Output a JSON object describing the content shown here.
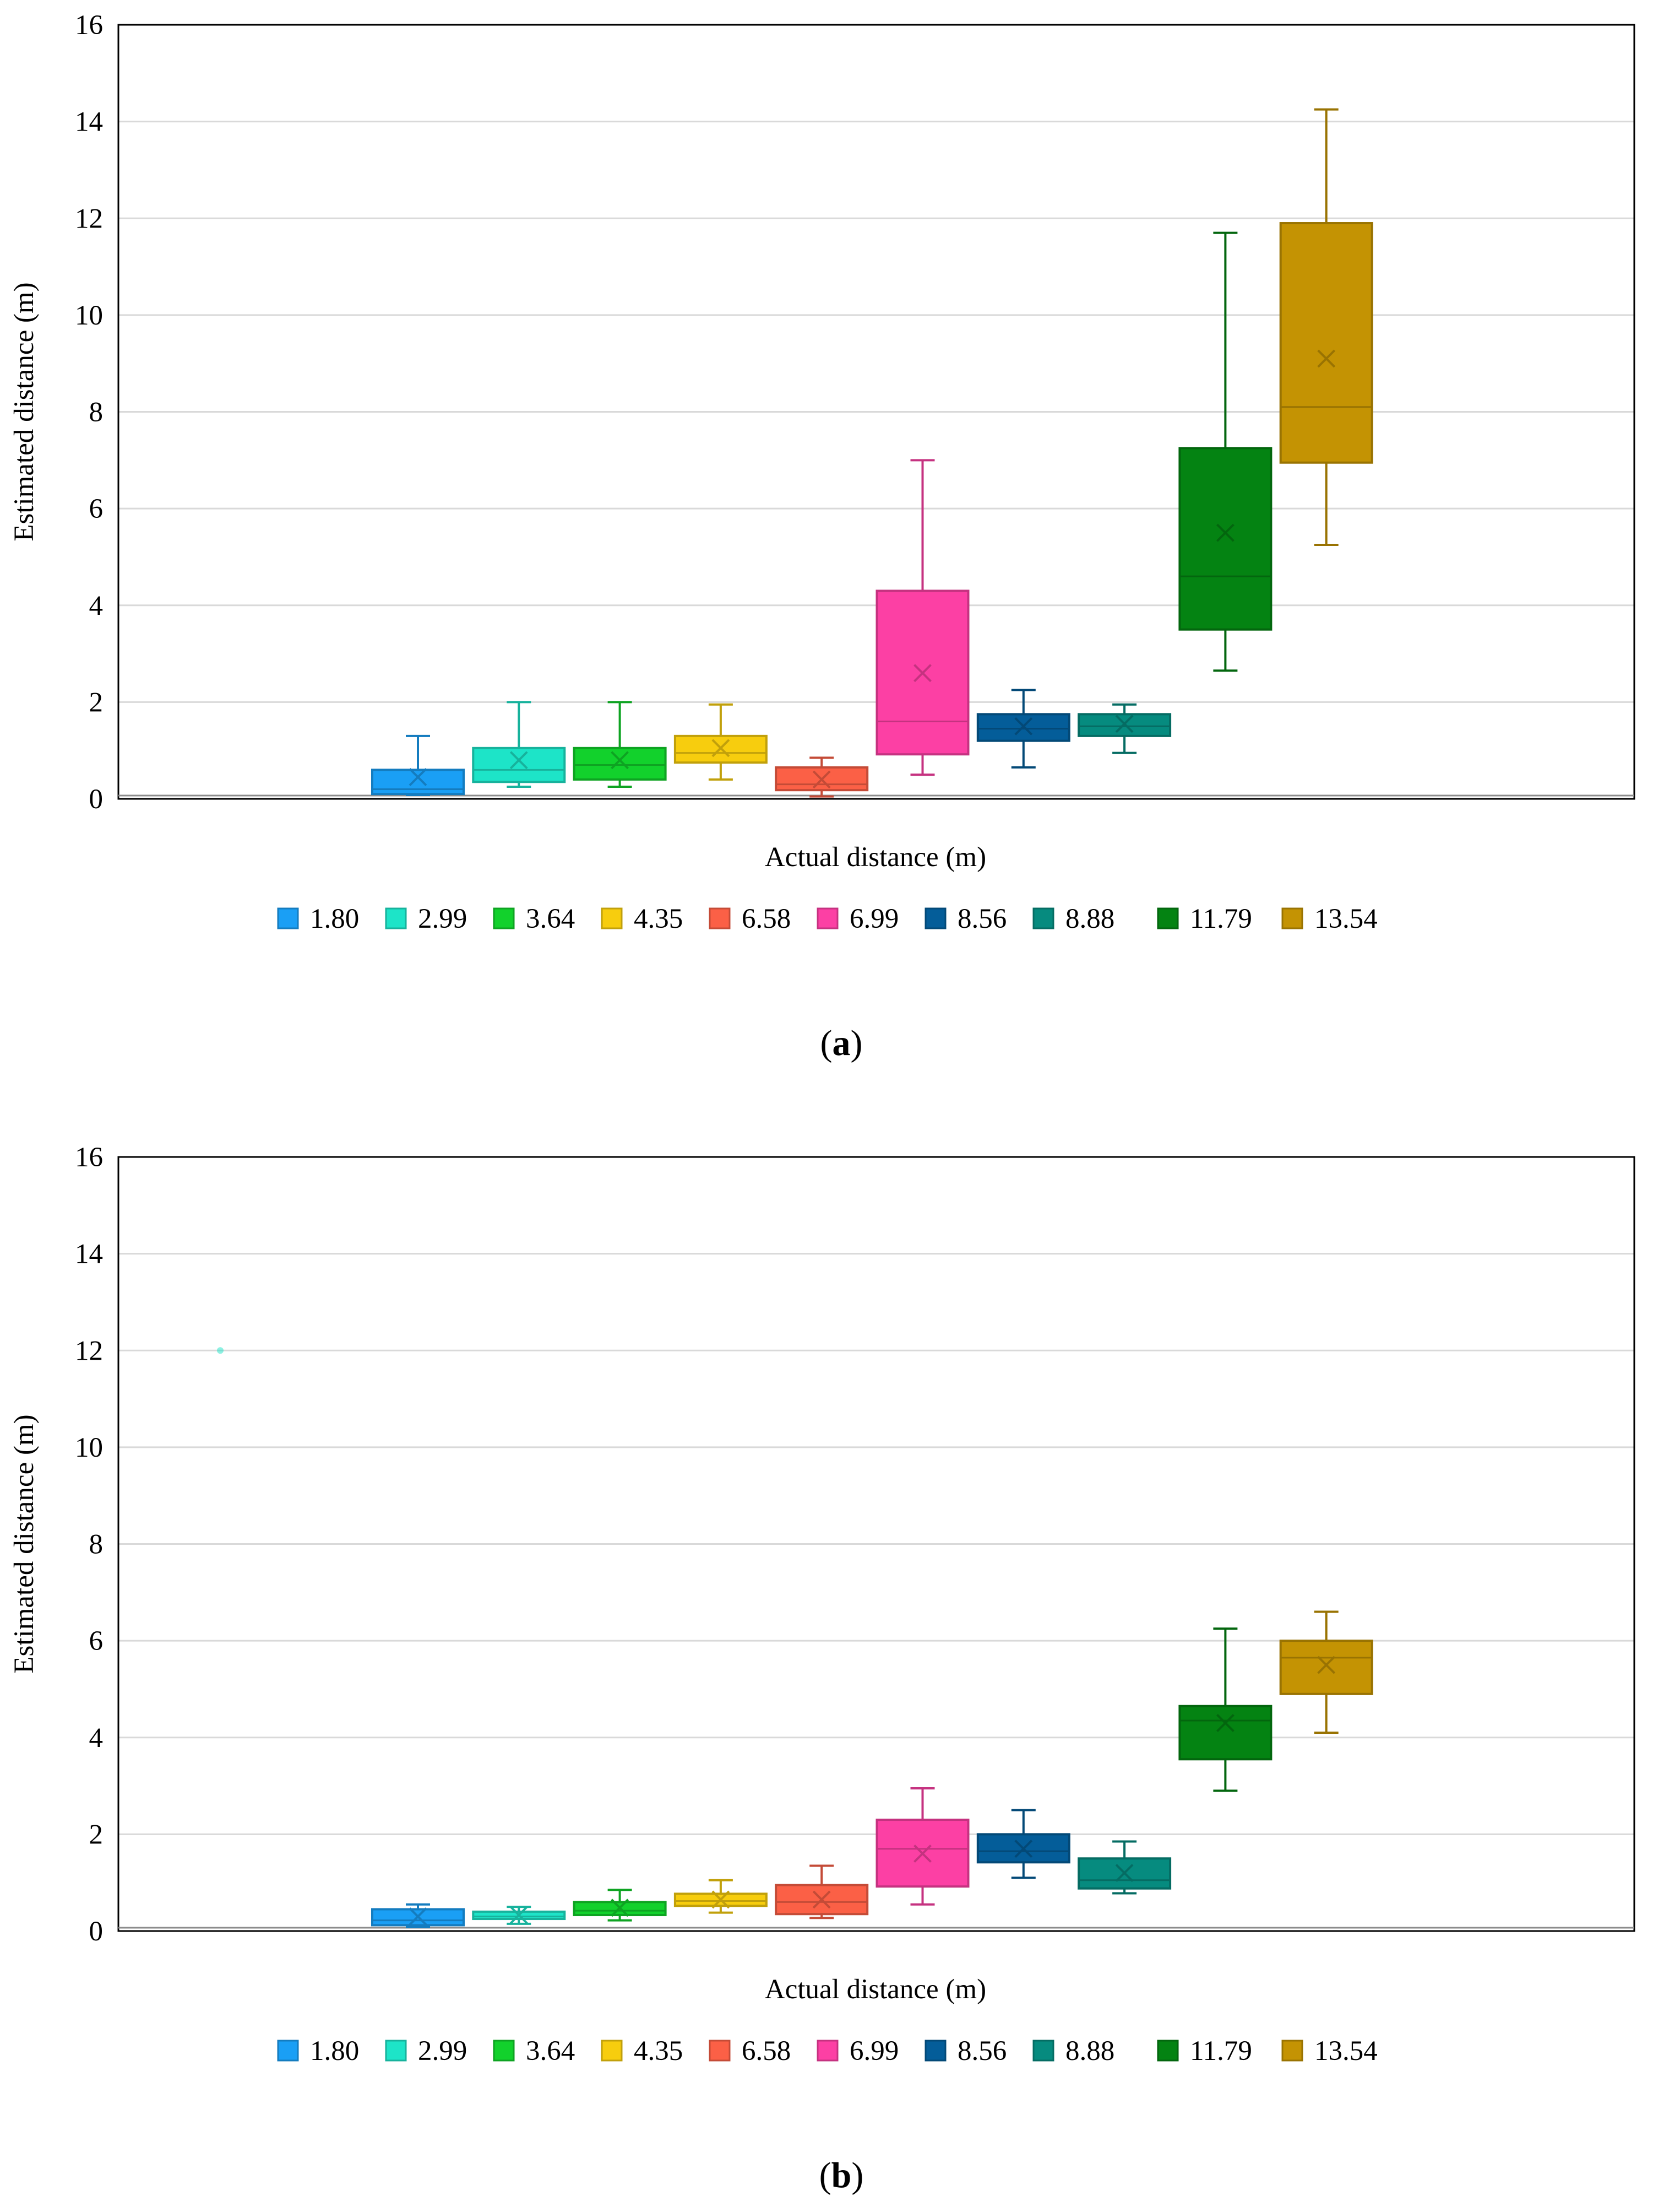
{
  "chart_data": [
    {
      "type": "box",
      "caption_letter": "a",
      "xlabel": "Actual distance (m)",
      "ylabel": "Estimated distance (m)",
      "ylim": [
        0,
        16
      ],
      "yticks": [
        "0",
        "2",
        "4",
        "6",
        "8",
        "10",
        "12",
        "14",
        "16"
      ],
      "grid": true,
      "legend_position": "bottom",
      "series": [
        {
          "name": "1.80",
          "color": "#1a9ff5",
          "min": 0.08,
          "q1": 0.1,
          "median": 0.2,
          "q3": 0.6,
          "max": 1.3,
          "mean": 0.45
        },
        {
          "name": "2.99",
          "color": "#1de4c8",
          "min": 0.25,
          "q1": 0.35,
          "median": 0.6,
          "q3": 1.05,
          "max": 2.0,
          "mean": 0.8
        },
        {
          "name": "3.64",
          "color": "#12d12c",
          "min": 0.25,
          "q1": 0.4,
          "median": 0.7,
          "q3": 1.05,
          "max": 2.0,
          "mean": 0.8
        },
        {
          "name": "4.35",
          "color": "#f7cd0e",
          "min": 0.4,
          "q1": 0.75,
          "median": 0.95,
          "q3": 1.3,
          "max": 1.95,
          "mean": 1.05
        },
        {
          "name": "6.58",
          "color": "#fb6046",
          "min": 0.05,
          "q1": 0.18,
          "median": 0.3,
          "q3": 0.65,
          "max": 0.85,
          "mean": 0.4
        },
        {
          "name": "6.99",
          "color": "#fc40a4",
          "min": 0.5,
          "q1": 0.92,
          "median": 1.6,
          "q3": 4.3,
          "max": 7.0,
          "mean": 2.6
        },
        {
          "name": "8.56",
          "color": "#045d99",
          "min": 0.65,
          "q1": 1.2,
          "median": 1.45,
          "q3": 1.75,
          "max": 2.25,
          "mean": 1.5
        },
        {
          "name": "8.88",
          "color": "#068b7f",
          "min": 0.95,
          "q1": 1.3,
          "median": 1.5,
          "q3": 1.75,
          "max": 1.95,
          "mean": 1.55
        },
        {
          "name": "11.79",
          "color": "#048312",
          "min": 2.65,
          "q1": 3.5,
          "median": 4.6,
          "q3": 7.25,
          "max": 11.7,
          "mean": 5.5
        },
        {
          "name": "13.54",
          "color": "#c49303",
          "min": 5.25,
          "q1": 6.95,
          "median": 8.1,
          "q3": 11.9,
          "max": 14.25,
          "mean": 9.1
        }
      ]
    },
    {
      "type": "box",
      "caption_letter": "b",
      "xlabel": "Actual distance (m)",
      "ylabel": "Estimated distance (m)",
      "ylim": [
        0,
        16
      ],
      "yticks": [
        "0",
        "2",
        "4",
        "6",
        "8",
        "10",
        "12",
        "14",
        "16"
      ],
      "grid": true,
      "legend_position": "bottom",
      "outliers": [
        {
          "series": "2.99",
          "x_position": "far-left",
          "y": 12.0
        }
      ],
      "series": [
        {
          "name": "1.80",
          "color": "#1a9ff5",
          "min": 0.08,
          "q1": 0.12,
          "median": 0.22,
          "q3": 0.45,
          "max": 0.55,
          "mean": 0.3
        },
        {
          "name": "2.99",
          "color": "#1de4c8",
          "min": 0.15,
          "q1": 0.25,
          "median": 0.3,
          "q3": 0.4,
          "max": 0.5,
          "mean": 0.33
        },
        {
          "name": "3.64",
          "color": "#12d12c",
          "min": 0.22,
          "q1": 0.33,
          "median": 0.42,
          "q3": 0.6,
          "max": 0.85,
          "mean": 0.48
        },
        {
          "name": "4.35",
          "color": "#f7cd0e",
          "min": 0.38,
          "q1": 0.52,
          "median": 0.62,
          "q3": 0.77,
          "max": 1.05,
          "mean": 0.65
        },
        {
          "name": "6.58",
          "color": "#fb6046",
          "min": 0.27,
          "q1": 0.35,
          "median": 0.6,
          "q3": 0.95,
          "max": 1.35,
          "mean": 0.65
        },
        {
          "name": "6.99",
          "color": "#fc40a4",
          "min": 0.55,
          "q1": 0.92,
          "median": 1.7,
          "q3": 2.3,
          "max": 2.95,
          "mean": 1.6
        },
        {
          "name": "8.56",
          "color": "#045d99",
          "min": 1.1,
          "q1": 1.42,
          "median": 1.65,
          "q3": 2.0,
          "max": 2.5,
          "mean": 1.7
        },
        {
          "name": "8.88",
          "color": "#068b7f",
          "min": 0.78,
          "q1": 0.88,
          "median": 1.05,
          "q3": 1.5,
          "max": 1.85,
          "mean": 1.2
        },
        {
          "name": "11.79",
          "color": "#048312",
          "min": 2.9,
          "q1": 3.55,
          "median": 4.35,
          "q3": 4.65,
          "max": 6.25,
          "mean": 4.3
        },
        {
          "name": "13.54",
          "color": "#c49303",
          "min": 4.1,
          "q1": 4.9,
          "median": 5.65,
          "q3": 6.0,
          "max": 6.6,
          "mean": 5.5
        }
      ]
    }
  ]
}
